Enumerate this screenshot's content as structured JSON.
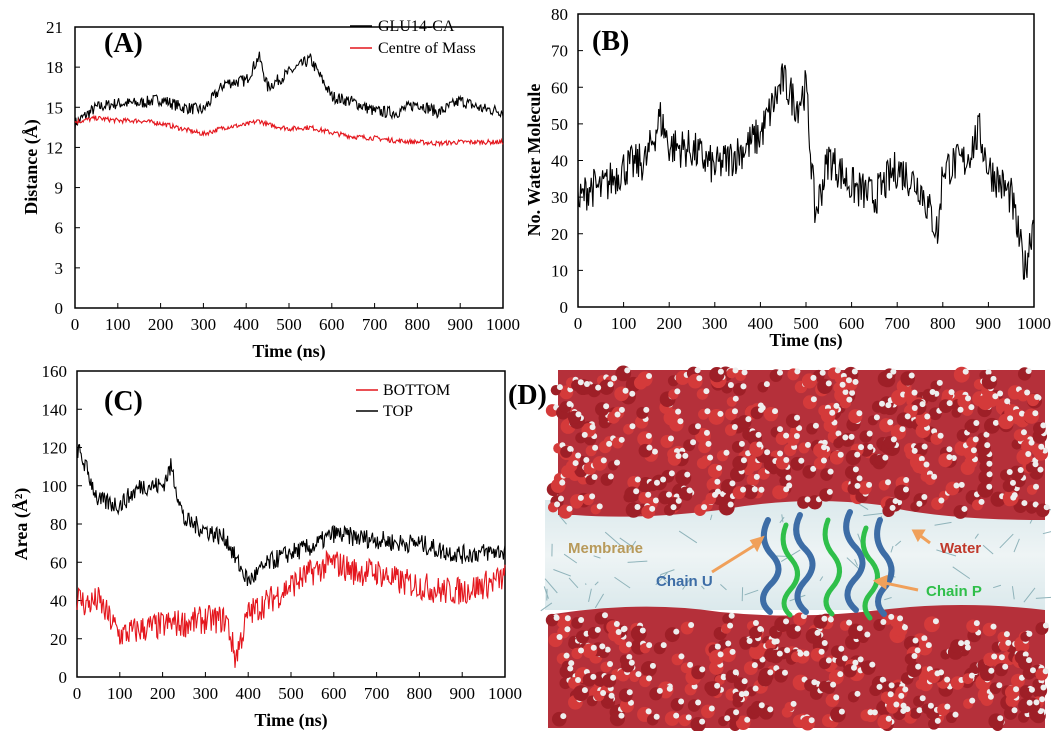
{
  "chart_data": [
    {
      "panel": "(A)",
      "type": "line",
      "xlabel": "Time (ns)",
      "ylabel": "Distance (Å)",
      "xlim": [
        0,
        1000
      ],
      "ylim": [
        0,
        21
      ],
      "xticks": [
        0,
        100,
        200,
        300,
        400,
        500,
        600,
        700,
        800,
        900,
        1000
      ],
      "yticks": [
        0,
        3,
        6,
        9,
        12,
        15,
        18,
        21
      ],
      "grid": false,
      "legend": "top-right",
      "x": [
        0,
        50,
        100,
        150,
        200,
        250,
        300,
        350,
        400,
        430,
        450,
        500,
        550,
        600,
        650,
        700,
        750,
        800,
        850,
        900,
        950,
        1000
      ],
      "series": [
        {
          "name": "GLU14-CA",
          "color": "#000000",
          "values": [
            13.8,
            15.0,
            15.3,
            15.3,
            15.6,
            15.0,
            14.8,
            16.8,
            17.0,
            18.8,
            16.5,
            17.6,
            18.6,
            15.8,
            15.4,
            14.7,
            14.6,
            15.3,
            14.6,
            15.5,
            14.9,
            14.7
          ]
        },
        {
          "name": "Centre of Mass",
          "color": "#e4161d",
          "values": [
            13.9,
            14.2,
            14.0,
            14.0,
            13.8,
            13.4,
            13.0,
            13.5,
            13.7,
            14.0,
            13.7,
            13.4,
            13.5,
            13.1,
            12.8,
            12.7,
            12.5,
            12.4,
            12.3,
            12.4,
            12.4,
            12.4
          ]
        }
      ]
    },
    {
      "panel": "(B)",
      "type": "line",
      "xlabel": "Time (ns)",
      "ylabel": "No. Water Molecule",
      "xlim": [
        0,
        1000
      ],
      "ylim": [
        0,
        80
      ],
      "xticks": [
        0,
        100,
        200,
        300,
        400,
        500,
        600,
        700,
        800,
        900,
        1000
      ],
      "yticks": [
        0,
        10,
        20,
        30,
        40,
        50,
        60,
        70,
        80
      ],
      "grid": false,
      "x": [
        0,
        25,
        50,
        100,
        150,
        180,
        200,
        250,
        300,
        350,
        400,
        450,
        480,
        500,
        520,
        550,
        600,
        650,
        700,
        750,
        790,
        800,
        850,
        880,
        900,
        950,
        980,
        1000
      ],
      "series": [
        {
          "name": "",
          "color": "#000000",
          "values": [
            28,
            33,
            32,
            38,
            40,
            52,
            44,
            43,
            38,
            42,
            47,
            62,
            55,
            60,
            25,
            41,
            33,
            30,
            38,
            33,
            20,
            38,
            40,
            48,
            38,
            30,
            10,
            25
          ]
        }
      ]
    },
    {
      "panel": "(C)",
      "type": "line",
      "xlabel": "Time (ns)",
      "ylabel": "Area (Å²)",
      "xlim": [
        0,
        1000
      ],
      "ylim": [
        0,
        160
      ],
      "xticks": [
        0,
        100,
        200,
        300,
        400,
        500,
        600,
        700,
        800,
        900,
        1000
      ],
      "yticks": [
        0,
        20,
        40,
        60,
        80,
        100,
        120,
        140,
        160
      ],
      "grid": false,
      "legend": "top-right",
      "x": [
        0,
        20,
        50,
        100,
        150,
        200,
        220,
        250,
        300,
        350,
        370,
        400,
        450,
        500,
        550,
        600,
        650,
        700,
        750,
        800,
        850,
        900,
        950,
        1000
      ],
      "series": [
        {
          "name": "BOTTOM",
          "color": "#e4161d",
          "values": [
            42,
            38,
            40,
            22,
            25,
            27,
            28,
            28,
            30,
            30,
            10,
            33,
            40,
            48,
            55,
            60,
            55,
            55,
            50,
            48,
            45,
            45,
            48,
            52
          ]
        },
        {
          "name": "TOP",
          "color": "#000000",
          "values": [
            120,
            110,
            92,
            90,
            100,
            100,
            110,
            82,
            77,
            72,
            62,
            50,
            60,
            65,
            68,
            75,
            73,
            72,
            70,
            70,
            66,
            64,
            65,
            66
          ]
        }
      ]
    }
  ],
  "panel_d": {
    "label": "(D)",
    "annotations": {
      "membrane": "Membrane",
      "water": "Water",
      "chain_u": "Chain U",
      "chain_p": "Chain P"
    },
    "colors": {
      "membrane": "#b89a5a",
      "water": "#c0392b",
      "chain_u": "#3d6da6",
      "chain_p": "#2fbf4a",
      "arrow": "#f0a05a"
    }
  }
}
